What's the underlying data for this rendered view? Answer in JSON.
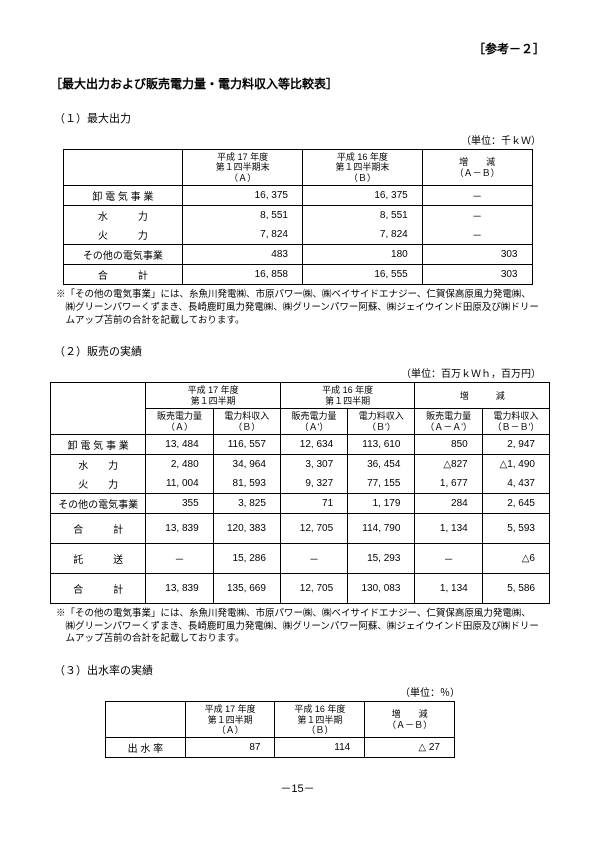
{
  "refTag": "［参考－２］",
  "docTitle": "［最大出力および販売電力量・電力料収入等比較表］",
  "pageNumber": "－15－",
  "sec1": {
    "heading": "（１）最大出力",
    "unit": "（単位：千ｋＷ）",
    "head": {
      "a": "平成 17 年度\n第１四半期末\n（Ａ）",
      "b": "平成 16 年度\n第１四半期末\n（Ｂ）",
      "diff": "増　　減\n（Ａ－Ｂ）"
    },
    "rows": [
      {
        "label": "卸 電 気 事 業",
        "a": "16, 375",
        "b": "16, 375",
        "d": "－"
      },
      {
        "label": "水　　　力",
        "a": "8, 551",
        "b": "8, 551",
        "d": "－"
      },
      {
        "label": "火　　　力",
        "a": "7, 824",
        "b": "7, 824",
        "d": "－"
      },
      {
        "label": "その他の電気事業",
        "a": "483",
        "b": "180",
        "d": "303"
      },
      {
        "label": "合　　　計",
        "a": "16, 858",
        "b": "16, 555",
        "d": "303"
      }
    ],
    "note": "※「その他の電気事業」には、糸魚川発電㈱、市原パワー㈱、㈱ベイサイドエナジー、仁賀保高原風力発電㈱、㈱グリーンパワーくずまき、長崎鹿町風力発電㈱、㈱グリーンパワー阿蘇、㈱ジェイウインド田原及び㈱ドリームアップ苫前の合計を記載しております。"
  },
  "sec2": {
    "heading": "（２）販売の実績",
    "unit": "（単位：百万ｋＷｈ，百万円）",
    "head": {
      "g17": "平成 17 年度\n第１四半期",
      "g16": "平成 16 年度\n第１四半期",
      "gdiff": "増　　　減",
      "qtyA": "販売電力量\n（Ａ）",
      "revB": "電力料収入\n（Ｂ）",
      "qtyAp": "販売電力量\n（Ａ'）",
      "revBp": "電力料収入\n（Ｂ'）",
      "qtyD": "販売電力量\n（Ａ－Ａ'）",
      "revD": "電力料収入\n（Ｂ－Ｂ'）"
    },
    "rows": [
      {
        "label": "卸 電 気 事 業",
        "v": [
          "13, 484",
          "116, 557",
          "12, 634",
          "113, 610",
          "850",
          "2, 947"
        ]
      },
      {
        "label": "水　　力",
        "v": [
          "2, 480",
          "34, 964",
          "3, 307",
          "36, 454",
          "△827",
          "△1, 490"
        ]
      },
      {
        "label": "火　　力",
        "v": [
          "11, 004",
          "81, 593",
          "9, 327",
          "77, 155",
          "1, 677",
          "4, 437"
        ]
      },
      {
        "label": "その他の電気事業",
        "v": [
          "355",
          "3, 825",
          "71",
          "1, 179",
          "284",
          "2, 645"
        ]
      },
      {
        "label": "合　　　計",
        "v": [
          "13, 839",
          "120, 383",
          "12, 705",
          "114, 790",
          "1, 134",
          "5, 593"
        ]
      },
      {
        "label": "託　　　送",
        "v": [
          "－",
          "15, 286",
          "－",
          "15, 293",
          "－",
          "△6"
        ]
      },
      {
        "label": "合　　　計",
        "v": [
          "13, 839",
          "135, 669",
          "12, 705",
          "130, 083",
          "1, 134",
          "5, 586"
        ]
      }
    ],
    "note": "※「その他の電気事業」には、糸魚川発電㈱、市原パワー㈱、㈱ベイサイドエナジー、仁賀保高原風力発電㈱、㈱グリーンパワーくずまき、長崎鹿町風力発電㈱、㈱グリーンパワー阿蘇、㈱ジェイウインド田原及び㈱ドリームアップ苫前の合計を記載しております。"
  },
  "sec3": {
    "heading": "（３）出水率の実績",
    "unit": "（単位：％）",
    "head": {
      "a": "平成 17 年度\n第１四半期\n（Ａ）",
      "b": "平成 16 年度\n第１四半期\n（Ｂ）",
      "diff": "増　　減\n（Ａ－Ｂ）"
    },
    "row": {
      "label": "出 水 率",
      "a": "87",
      "b": "114",
      "d": "△ 27"
    }
  }
}
